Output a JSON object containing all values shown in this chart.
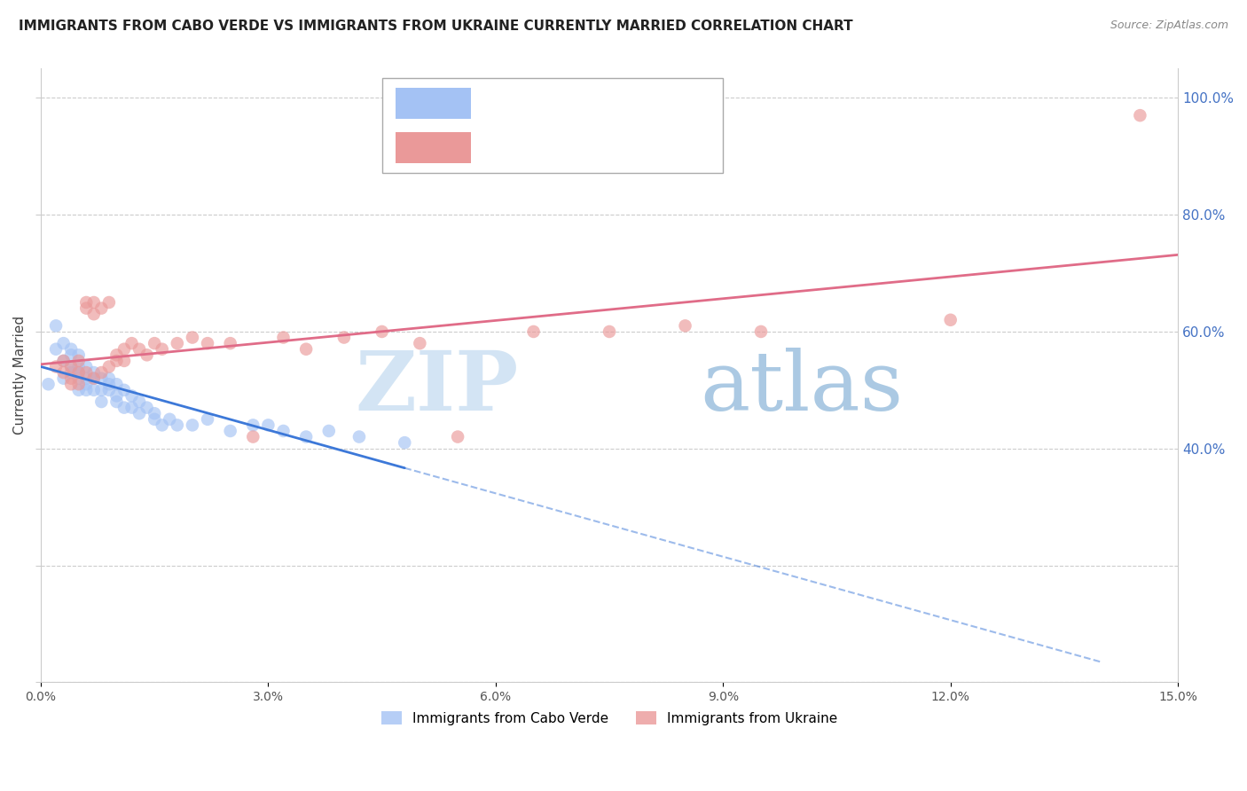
{
  "title": "IMMIGRANTS FROM CABO VERDE VS IMMIGRANTS FROM UKRAINE CURRENTLY MARRIED CORRELATION CHART",
  "source": "Source: ZipAtlas.com",
  "ylabel": "Currently Married",
  "cabo_verde_color": "#a4c2f4",
  "ukraine_color": "#ea9999",
  "cabo_verde_line_color": "#3c78d8",
  "ukraine_line_color": "#e06c88",
  "watermark_zip": "ZIP",
  "watermark_atlas": "atlas",
  "cabo_verde_x": [
    0.001,
    0.002,
    0.002,
    0.003,
    0.003,
    0.003,
    0.004,
    0.004,
    0.004,
    0.004,
    0.005,
    0.005,
    0.005,
    0.005,
    0.005,
    0.006,
    0.006,
    0.006,
    0.006,
    0.007,
    0.007,
    0.007,
    0.008,
    0.008,
    0.008,
    0.009,
    0.009,
    0.009,
    0.01,
    0.01,
    0.01,
    0.011,
    0.011,
    0.012,
    0.012,
    0.013,
    0.013,
    0.014,
    0.015,
    0.015,
    0.016,
    0.017,
    0.018,
    0.02,
    0.022,
    0.025,
    0.028,
    0.03,
    0.032,
    0.035,
    0.038,
    0.042,
    0.048
  ],
  "cabo_verde_y": [
    0.51,
    0.61,
    0.57,
    0.55,
    0.52,
    0.58,
    0.54,
    0.56,
    0.53,
    0.57,
    0.52,
    0.54,
    0.56,
    0.5,
    0.53,
    0.51,
    0.52,
    0.54,
    0.5,
    0.52,
    0.5,
    0.53,
    0.5,
    0.52,
    0.48,
    0.51,
    0.5,
    0.52,
    0.49,
    0.51,
    0.48,
    0.5,
    0.47,
    0.49,
    0.47,
    0.48,
    0.46,
    0.47,
    0.46,
    0.45,
    0.44,
    0.45,
    0.44,
    0.44,
    0.45,
    0.43,
    0.44,
    0.44,
    0.43,
    0.42,
    0.43,
    0.42,
    0.41
  ],
  "ukraine_x": [
    0.002,
    0.003,
    0.003,
    0.004,
    0.004,
    0.004,
    0.005,
    0.005,
    0.005,
    0.006,
    0.006,
    0.006,
    0.007,
    0.007,
    0.007,
    0.008,
    0.008,
    0.009,
    0.009,
    0.01,
    0.01,
    0.011,
    0.011,
    0.012,
    0.013,
    0.014,
    0.015,
    0.016,
    0.018,
    0.02,
    0.022,
    0.025,
    0.028,
    0.032,
    0.035,
    0.04,
    0.045,
    0.05,
    0.055,
    0.065,
    0.075,
    0.085,
    0.095,
    0.12,
    0.145
  ],
  "ukraine_y": [
    0.54,
    0.53,
    0.55,
    0.52,
    0.54,
    0.51,
    0.53,
    0.55,
    0.51,
    0.65,
    0.64,
    0.53,
    0.65,
    0.63,
    0.52,
    0.64,
    0.53,
    0.65,
    0.54,
    0.55,
    0.56,
    0.57,
    0.55,
    0.58,
    0.57,
    0.56,
    0.58,
    0.57,
    0.58,
    0.59,
    0.58,
    0.58,
    0.42,
    0.59,
    0.57,
    0.59,
    0.6,
    0.58,
    0.42,
    0.6,
    0.6,
    0.61,
    0.6,
    0.62,
    0.97
  ],
  "xlim": [
    0.0,
    0.15
  ],
  "ylim": [
    0.0,
    1.05
  ],
  "xtick_vals": [
    0.0,
    0.03,
    0.06,
    0.09,
    0.12,
    0.15
  ],
  "xtick_labels": [
    "0.0%",
    "3.0%",
    "6.0%",
    "9.0%",
    "12.0%",
    "15.0%"
  ],
  "right_ytick_vals": [
    0.4,
    0.6,
    0.8,
    1.0
  ],
  "right_ytick_labels": [
    "40.0%",
    "60.0%",
    "80.0%",
    "100.0%"
  ]
}
